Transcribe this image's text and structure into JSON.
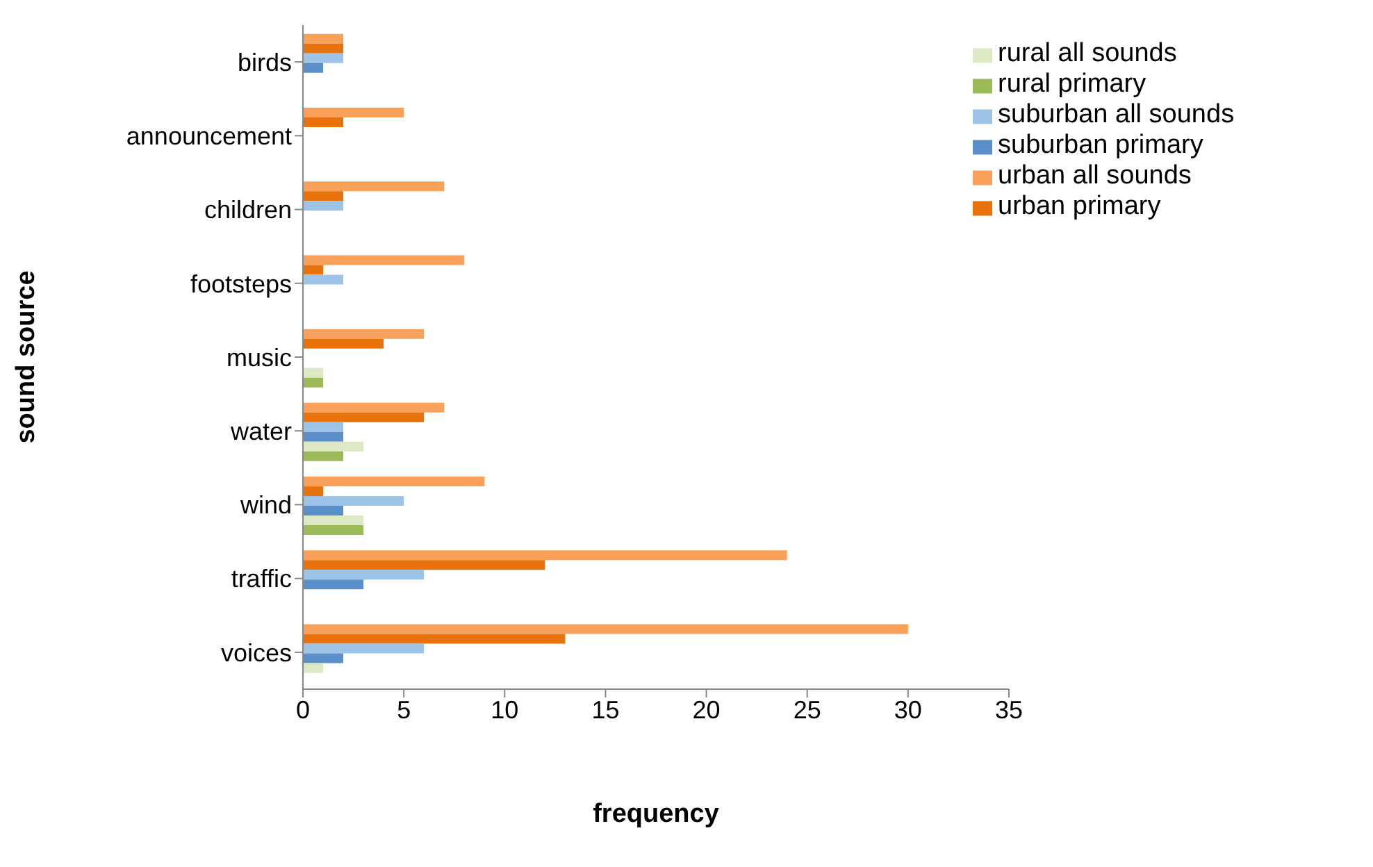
{
  "chart_data": {
    "type": "bar",
    "orientation": "horizontal",
    "xlabel": "frequency",
    "ylabel": "sound source",
    "categories": [
      "birds",
      "announcement",
      "children",
      "footsteps",
      "music",
      "water",
      "wind",
      "traffic",
      "voices"
    ],
    "series": [
      {
        "name": "urban all sounds",
        "color": "#f9a05a",
        "values": [
          2,
          5,
          7,
          8,
          6,
          7,
          9,
          24,
          30
        ]
      },
      {
        "name": "urban primary",
        "color": "#e8720c",
        "values": [
          2,
          2,
          2,
          1,
          4,
          6,
          1,
          12,
          13
        ]
      },
      {
        "name": "suburban all sounds",
        "color": "#9dc3e6",
        "values": [
          2,
          null,
          2,
          2,
          null,
          2,
          5,
          6,
          6
        ]
      },
      {
        "name": "suburban primary",
        "color": "#5b8fc9",
        "values": [
          1,
          null,
          null,
          null,
          null,
          2,
          2,
          3,
          2
        ]
      },
      {
        "name": "rural all sounds",
        "color": "#dde8c4",
        "values": [
          null,
          null,
          null,
          null,
          1,
          3,
          3,
          null,
          1
        ]
      },
      {
        "name": "rural primary",
        "color": "#9bbb59",
        "values": [
          null,
          null,
          null,
          null,
          1,
          2,
          3,
          null,
          null
        ]
      }
    ],
    "xlim": [
      0,
      35
    ],
    "xticks": [
      0,
      5,
      10,
      15,
      20,
      25,
      30,
      35
    ],
    "grid": false,
    "legend": "top right"
  }
}
